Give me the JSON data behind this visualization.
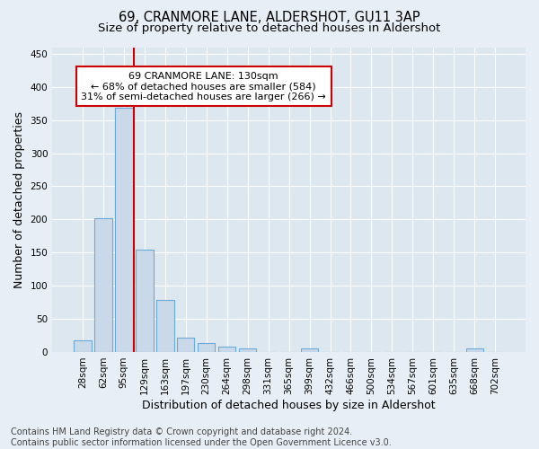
{
  "title": "69, CRANMORE LANE, ALDERSHOT, GU11 3AP",
  "subtitle": "Size of property relative to detached houses in Aldershot",
  "xlabel": "Distribution of detached houses by size in Aldershot",
  "ylabel": "Number of detached properties",
  "bar_labels": [
    "28sqm",
    "62sqm",
    "95sqm",
    "129sqm",
    "163sqm",
    "197sqm",
    "230sqm",
    "264sqm",
    "298sqm",
    "331sqm",
    "365sqm",
    "399sqm",
    "432sqm",
    "466sqm",
    "500sqm",
    "534sqm",
    "567sqm",
    "601sqm",
    "635sqm",
    "668sqm",
    "702sqm"
  ],
  "bar_values": [
    18,
    202,
    369,
    155,
    78,
    21,
    14,
    8,
    5,
    0,
    0,
    5,
    0,
    0,
    0,
    0,
    0,
    0,
    0,
    5,
    0
  ],
  "bar_color": "#c9d9ea",
  "bar_edge_color": "#6aaad4",
  "marker_color": "#cc0000",
  "annotation_line1": "69 CRANMORE LANE: 130sqm",
  "annotation_line2": "← 68% of detached houses are smaller (584)",
  "annotation_line3": "31% of semi-detached houses are larger (266) →",
  "ylim": [
    0,
    460
  ],
  "yticks": [
    0,
    50,
    100,
    150,
    200,
    250,
    300,
    350,
    400,
    450
  ],
  "footer_line1": "Contains HM Land Registry data © Crown copyright and database right 2024.",
  "footer_line2": "Contains public sector information licensed under the Open Government Licence v3.0.",
  "background_color": "#e8eef5",
  "plot_bg_color": "#dce7f0",
  "grid_color": "#ffffff",
  "title_fontsize": 10.5,
  "subtitle_fontsize": 9.5,
  "axis_label_fontsize": 9,
  "tick_fontsize": 7.5,
  "annotation_fontsize": 8,
  "footer_fontsize": 7
}
